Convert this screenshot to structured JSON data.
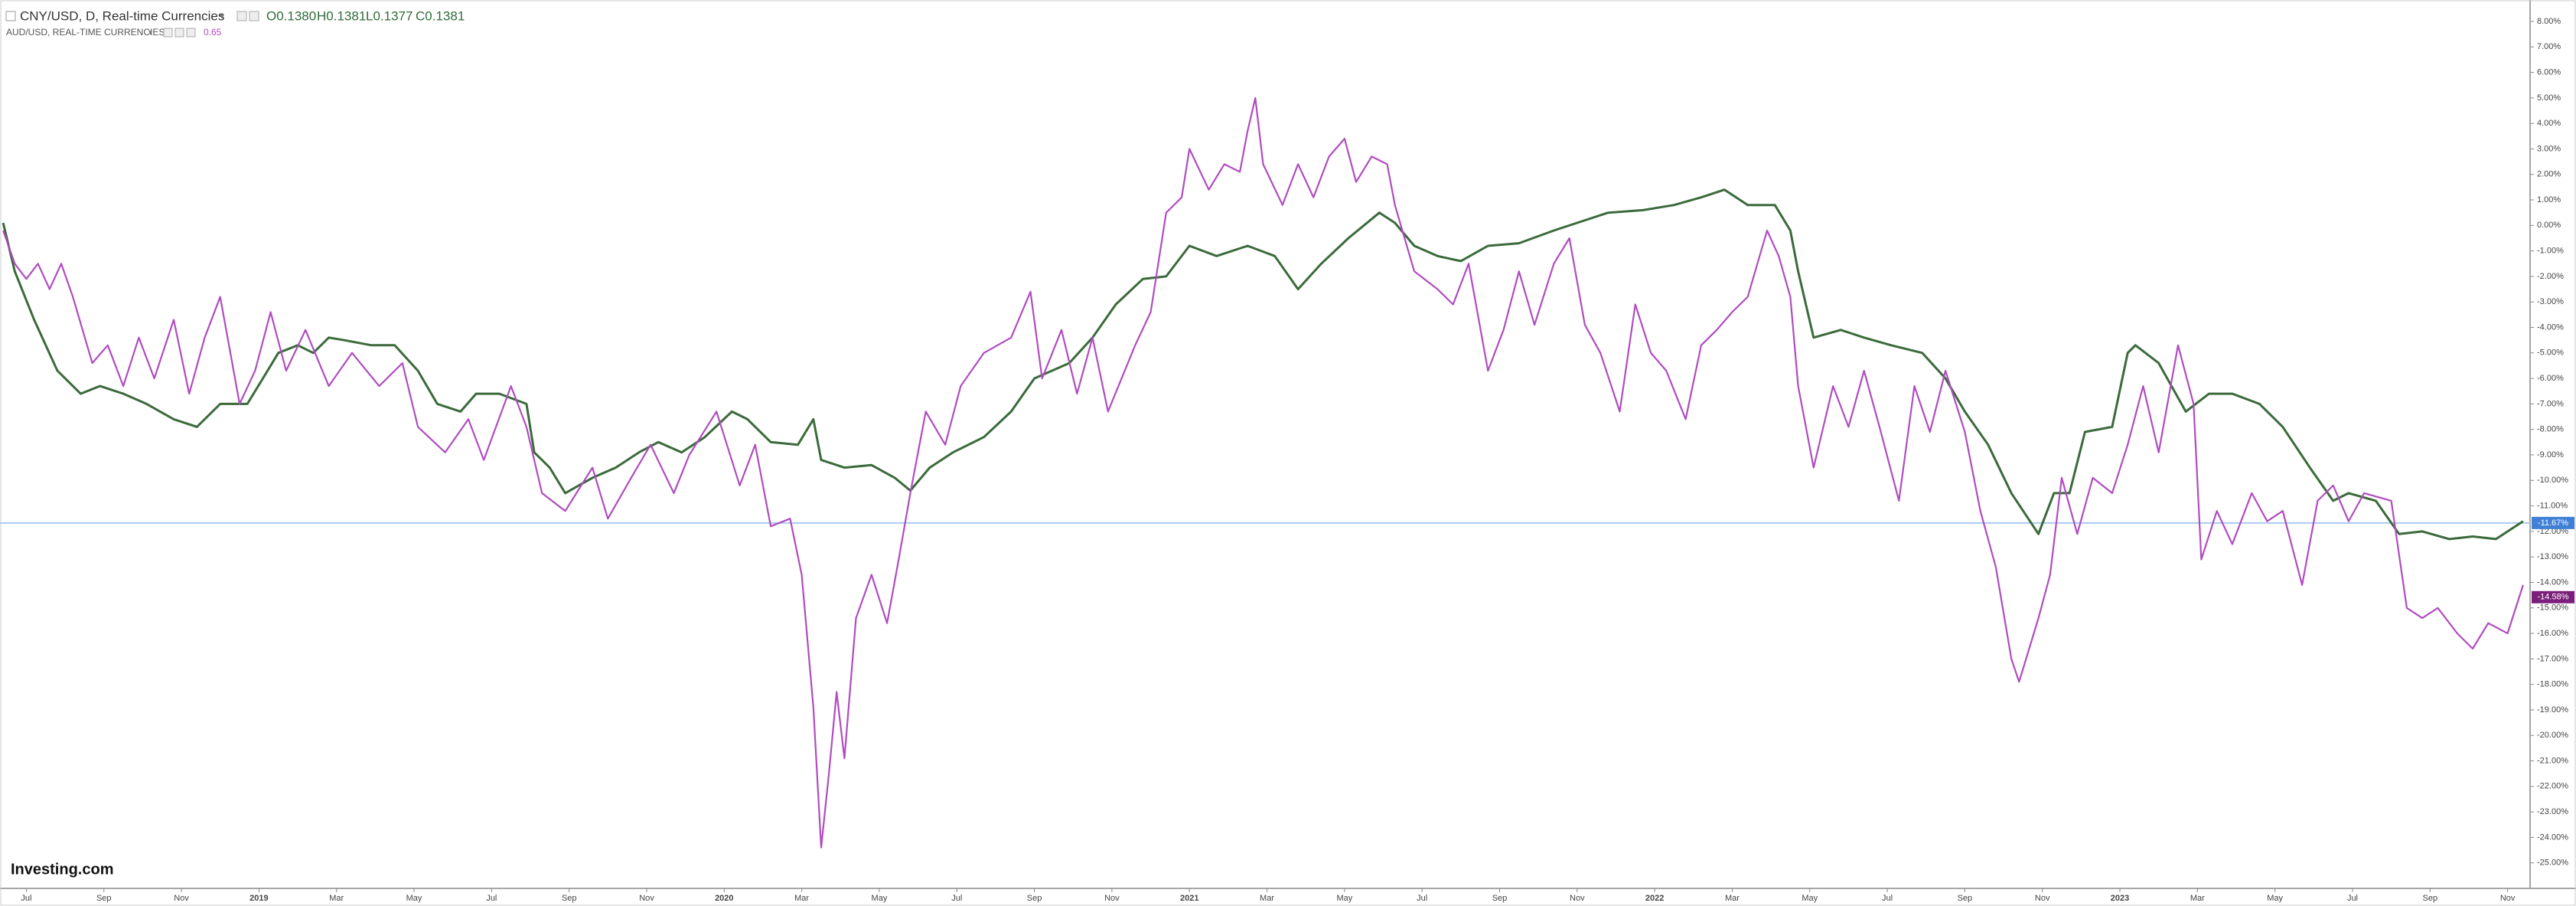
{
  "chart_data": {
    "type": "line",
    "logo": "Investing.com",
    "xlim": [
      -0.68,
      64.58
    ],
    "ylim": [
      -26.0,
      8.84
    ],
    "xticks": [
      {
        "value": 0,
        "label": "Jul"
      },
      {
        "value": 2,
        "label": "Sep"
      },
      {
        "value": 4,
        "label": "Nov"
      },
      {
        "value": 6,
        "label": "2019"
      },
      {
        "value": 8,
        "label": "Mar"
      },
      {
        "value": 10,
        "label": "May"
      },
      {
        "value": 12,
        "label": "Jul"
      },
      {
        "value": 14,
        "label": "Sep"
      },
      {
        "value": 16,
        "label": "Nov"
      },
      {
        "value": 18,
        "label": "2020"
      },
      {
        "value": 20,
        "label": "Mar"
      },
      {
        "value": 22,
        "label": "May"
      },
      {
        "value": 24,
        "label": "Jul"
      },
      {
        "value": 26,
        "label": "Sep"
      },
      {
        "value": 28,
        "label": "Nov"
      },
      {
        "value": 30,
        "label": "2021"
      },
      {
        "value": 32,
        "label": "Mar"
      },
      {
        "value": 34,
        "label": "May"
      },
      {
        "value": 36,
        "label": "Jul"
      },
      {
        "value": 38,
        "label": "Sep"
      },
      {
        "value": 40,
        "label": "Nov"
      },
      {
        "value": 42,
        "label": "2022"
      },
      {
        "value": 44,
        "label": "Mar"
      },
      {
        "value": 46,
        "label": "May"
      },
      {
        "value": 48,
        "label": "Jul"
      },
      {
        "value": 50,
        "label": "Sep"
      },
      {
        "value": 52,
        "label": "Nov"
      },
      {
        "value": 54,
        "label": "2023"
      },
      {
        "value": 56,
        "label": "Mar"
      },
      {
        "value": 58,
        "label": "May"
      },
      {
        "value": 60,
        "label": "Jul"
      },
      {
        "value": 62,
        "label": "Sep"
      },
      {
        "value": 64,
        "label": "Nov"
      }
    ],
    "yticks": [
      {
        "value": 8,
        "label": "8.00%"
      },
      {
        "value": 7,
        "label": "7.00%"
      },
      {
        "value": 6,
        "label": "6.00%"
      },
      {
        "value": 5,
        "label": "5.00%"
      },
      {
        "value": 4,
        "label": "4.00%"
      },
      {
        "value": 3,
        "label": "3.00%"
      },
      {
        "value": 2,
        "label": "2.00%"
      },
      {
        "value": 1,
        "label": "1.00%"
      },
      {
        "value": 0,
        "label": "0.00%"
      },
      {
        "value": -1,
        "label": "-1.00%"
      },
      {
        "value": -2,
        "label": "-2.00%"
      },
      {
        "value": -3,
        "label": "-3.00%"
      },
      {
        "value": -4,
        "label": "-4.00%"
      },
      {
        "value": -5,
        "label": "-5.00%"
      },
      {
        "value": -6,
        "label": "-6.00%"
      },
      {
        "value": -7,
        "label": "-7.00%"
      },
      {
        "value": -8,
        "label": "-8.00%"
      },
      {
        "value": -9,
        "label": "-9.00%"
      },
      {
        "value": -10,
        "label": "-10.00%"
      },
      {
        "value": -11,
        "label": "-11.00%"
      },
      {
        "value": -12,
        "label": "-12.00%"
      },
      {
        "value": -13,
        "label": "-13.00%"
      },
      {
        "value": -14,
        "label": "-14.00%"
      },
      {
        "value": -15,
        "label": "-15.00%"
      },
      {
        "value": -16,
        "label": "-16.00%"
      },
      {
        "value": -17,
        "label": "-17.00%"
      },
      {
        "value": -18,
        "label": "-18.00%"
      },
      {
        "value": -19,
        "label": "-19.00%"
      },
      {
        "value": -20,
        "label": "-20.00%"
      },
      {
        "value": -21,
        "label": "-21.00%"
      },
      {
        "value": -22,
        "label": "-22.00%"
      },
      {
        "value": -23,
        "label": "-23.00%"
      },
      {
        "value": -24,
        "label": "-24.00%"
      },
      {
        "value": -25,
        "label": "-25.00%"
      }
    ],
    "series": [
      {
        "name": "CNY/USD, D, Real-time Currencies",
        "color": "#3b6a3b",
        "badge_color": "#3f7fd6",
        "line_color": "#a8cbee",
        "ohlc": [
          "O0.1380",
          "H0.1381",
          "L0.1377",
          "C0.1381"
        ],
        "last_value": {
          "value": -11.67,
          "label": "-11.67%"
        },
        "x": [
          -0.6,
          -0.3,
          0.2,
          0.8,
          1.4,
          1.9,
          2.5,
          3.1,
          3.8,
          4.4,
          5.0,
          5.7,
          6.1,
          6.5,
          7.0,
          7.4,
          7.8,
          8.2,
          8.9,
          9.5,
          10.1,
          10.6,
          11.2,
          11.6,
          12.2,
          12.9,
          13.1,
          13.5,
          13.9,
          14.6,
          15.2,
          15.8,
          16.3,
          16.9,
          17.5,
          18.2,
          18.6,
          19.2,
          19.9,
          20.3,
          20.5,
          21.1,
          21.8,
          22.4,
          22.8,
          23.3,
          23.9,
          24.7,
          25.4,
          26.0,
          26.9,
          27.5,
          28.1,
          28.8,
          29.4,
          30.0,
          30.7,
          31.5,
          32.2,
          32.8,
          33.4,
          34.1,
          34.9,
          35.3,
          35.8,
          36.4,
          37.0,
          37.7,
          38.5,
          39.4,
          40.0,
          40.8,
          41.7,
          42.5,
          43.2,
          43.8,
          44.4,
          45.1,
          45.5,
          45.7,
          46.1,
          46.8,
          47.4,
          48.1,
          48.9,
          49.5,
          50.0,
          50.6,
          51.2,
          51.9,
          52.3,
          52.7,
          53.1,
          53.8,
          54.2,
          54.4,
          55.0,
          55.7,
          56.3,
          56.9,
          57.6,
          58.2,
          58.9,
          59.5,
          59.9,
          60.6,
          61.2,
          61.8,
          62.5,
          63.1,
          63.7,
          64.4
        ],
        "values": [
          0.1,
          -1.8,
          -3.7,
          -5.7,
          -6.6,
          -6.3,
          -6.6,
          -7.0,
          -7.6,
          -7.9,
          -7.0,
          -7.0,
          -6.0,
          -5.0,
          -4.7,
          -5.0,
          -4.4,
          -4.5,
          -4.7,
          -4.7,
          -5.7,
          -7.0,
          -7.3,
          -6.6,
          -6.6,
          -7.0,
          -8.9,
          -9.5,
          -10.5,
          -9.9,
          -9.5,
          -8.9,
          -8.5,
          -8.9,
          -8.3,
          -7.3,
          -7.6,
          -8.5,
          -8.6,
          -7.6,
          -9.2,
          -9.5,
          -9.4,
          -9.9,
          -10.4,
          -9.5,
          -8.9,
          -8.3,
          -7.3,
          -6.0,
          -5.4,
          -4.4,
          -3.1,
          -2.1,
          -2.0,
          -0.8,
          -1.2,
          -0.8,
          -1.2,
          -2.5,
          -1.5,
          -0.5,
          0.5,
          0.1,
          -0.8,
          -1.2,
          -1.4,
          -0.8,
          -0.7,
          -0.2,
          0.1,
          0.5,
          0.6,
          0.8,
          1.1,
          1.4,
          0.8,
          0.8,
          -0.2,
          -1.8,
          -4.4,
          -4.1,
          -4.4,
          -4.7,
          -5.0,
          -6.0,
          -7.3,
          -8.6,
          -10.5,
          -12.1,
          -10.5,
          -10.5,
          -8.1,
          -7.9,
          -5.0,
          -4.7,
          -5.4,
          -7.3,
          -6.6,
          -6.6,
          -7.0,
          -7.9,
          -9.5,
          -10.8,
          -10.5,
          -10.8,
          -12.1,
          -12.0,
          -12.3,
          -12.2,
          -12.3,
          -11.6
        ]
      },
      {
        "name": "AUD/USD, REAL-TIME CURRENCIES",
        "color": "#b04cc0",
        "badge_color": "#7b1f7b",
        "last": "0.65",
        "last_value": {
          "value": -14.58,
          "label": "-14.58%"
        },
        "x": [
          -0.6,
          -0.3,
          0.0,
          0.3,
          0.6,
          0.9,
          1.2,
          1.7,
          2.1,
          2.5,
          2.9,
          3.3,
          3.8,
          4.2,
          4.6,
          5.0,
          5.5,
          5.9,
          6.3,
          6.7,
          7.2,
          7.8,
          8.4,
          9.1,
          9.7,
          10.1,
          10.8,
          11.4,
          11.8,
          12.5,
          12.9,
          13.3,
          13.9,
          14.6,
          15.0,
          15.6,
          16.1,
          16.7,
          17.1,
          17.8,
          18.4,
          18.8,
          19.2,
          19.7,
          20.0,
          20.3,
          20.5,
          20.7,
          20.9,
          21.1,
          21.4,
          21.8,
          22.2,
          22.5,
          22.8,
          23.2,
          23.7,
          24.1,
          24.7,
          25.4,
          25.9,
          26.2,
          26.7,
          27.1,
          27.5,
          27.9,
          28.6,
          29.0,
          29.4,
          29.8,
          30.0,
          30.5,
          30.9,
          31.3,
          31.5,
          31.7,
          31.9,
          32.4,
          32.8,
          33.2,
          33.6,
          34.0,
          34.3,
          34.7,
          35.1,
          35.3,
          35.8,
          36.4,
          36.8,
          37.2,
          37.7,
          38.1,
          38.5,
          38.9,
          39.4,
          39.8,
          40.2,
          40.6,
          41.1,
          41.5,
          41.9,
          42.3,
          42.8,
          43.2,
          43.6,
          44.0,
          44.4,
          44.9,
          45.2,
          45.5,
          45.7,
          46.1,
          46.6,
          47.0,
          47.4,
          47.8,
          48.3,
          48.7,
          49.1,
          49.5,
          50.0,
          50.4,
          50.8,
          51.2,
          51.4,
          51.9,
          52.2,
          52.5,
          52.9,
          53.3,
          53.8,
          54.2,
          54.6,
          55.0,
          55.5,
          55.9,
          56.1,
          56.5,
          56.9,
          57.4,
          57.8,
          58.2,
          58.7,
          59.1,
          59.5,
          59.9,
          60.3,
          61.0,
          61.4,
          61.8,
          62.2,
          62.7,
          63.1,
          63.5,
          64.0,
          64.4
        ],
        "values": [
          -0.2,
          -1.5,
          -2.1,
          -1.5,
          -2.5,
          -1.5,
          -2.8,
          -5.4,
          -4.7,
          -6.3,
          -4.4,
          -6.0,
          -3.7,
          -6.6,
          -4.4,
          -2.8,
          -7.0,
          -5.7,
          -3.4,
          -5.7,
          -4.1,
          -6.3,
          -5.0,
          -6.3,
          -5.4,
          -7.9,
          -8.9,
          -7.6,
          -9.2,
          -6.3,
          -7.9,
          -10.5,
          -11.2,
          -9.5,
          -11.5,
          -9.9,
          -8.6,
          -10.5,
          -9.0,
          -7.3,
          -10.2,
          -8.6,
          -11.8,
          -11.5,
          -13.7,
          -18.9,
          -24.4,
          -21.5,
          -18.3,
          -20.9,
          -15.4,
          -13.7,
          -15.6,
          -13.1,
          -10.5,
          -7.3,
          -8.6,
          -6.3,
          -5.0,
          -4.4,
          -2.6,
          -6.0,
          -4.1,
          -6.6,
          -4.4,
          -7.3,
          -4.7,
          -3.4,
          0.5,
          1.1,
          3.0,
          1.4,
          2.4,
          2.1,
          3.7,
          5.0,
          2.4,
          0.8,
          2.4,
          1.1,
          2.7,
          3.4,
          1.7,
          2.7,
          2.4,
          0.8,
          -1.8,
          -2.5,
          -3.1,
          -1.5,
          -5.7,
          -4.1,
          -1.8,
          -3.9,
          -1.5,
          -0.5,
          -3.9,
          -5.0,
          -7.3,
          -3.1,
          -5.0,
          -5.7,
          -7.6,
          -4.7,
          -4.1,
          -3.4,
          -2.8,
          -0.2,
          -1.2,
          -2.8,
          -6.3,
          -9.5,
          -6.3,
          -7.9,
          -5.7,
          -7.9,
          -10.8,
          -6.3,
          -8.1,
          -5.7,
          -8.1,
          -11.2,
          -13.4,
          -17.0,
          -17.9,
          -15.4,
          -13.7,
          -9.9,
          -12.1,
          -9.9,
          -10.5,
          -8.6,
          -6.3,
          -8.9,
          -4.7,
          -7.0,
          -13.1,
          -11.2,
          -12.5,
          -10.5,
          -11.6,
          -11.2,
          -14.1,
          -10.8,
          -10.2,
          -11.6,
          -10.5,
          -10.8,
          -15.0,
          -15.4,
          -15.0,
          -16.0,
          -16.6,
          -15.6,
          -16.0,
          -14.1
        ]
      }
    ]
  }
}
